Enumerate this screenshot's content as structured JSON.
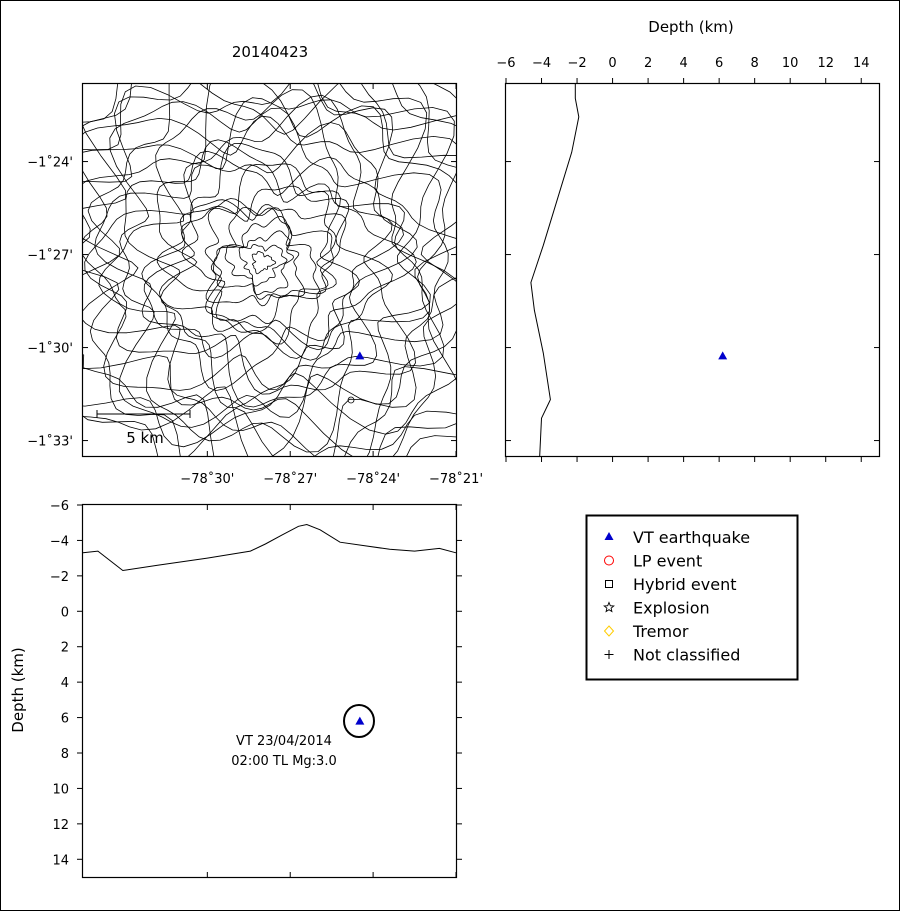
{
  "chart_data": [
    {
      "id": "map",
      "type": "scatter",
      "title": "20140423",
      "xlim": [
        -78.575,
        -78.35
      ],
      "ylim": [
        -1.5583,
        -1.3583
      ],
      "x_ticks": [
        -78.5,
        -78.45,
        -78.4,
        -78.35
      ],
      "x_tick_labels": [
        "−78˚30'",
        "−78˚27'",
        "−78˚24'",
        "−78˚21'"
      ],
      "y_ticks": [
        -1.4,
        -1.45,
        -1.5,
        -1.55
      ],
      "y_tick_labels": [
        "−1˚24'",
        "−1˚27'",
        "−1˚30'",
        "−1˚33'"
      ],
      "scale_bar_label": "5 km",
      "series": [
        {
          "name": "VT earthquake",
          "points": [
            {
              "x": -78.408,
              "y": -1.5045
            }
          ]
        }
      ]
    },
    {
      "id": "depth-lat",
      "type": "scatter",
      "xlabel": "Depth (km)",
      "xlim": [
        -6,
        15
      ],
      "ylim": [
        -1.5583,
        -1.3583
      ],
      "x_ticks": [
        -6,
        -4,
        -2,
        0,
        2,
        4,
        6,
        8,
        10,
        12,
        14
      ],
      "x_tick_labels": [
        "−6",
        "−4",
        "−2",
        "0",
        "2",
        "4",
        "6",
        "8",
        "10",
        "12",
        "14"
      ],
      "topography": [
        [
          -2.1,
          -1.3583
        ],
        [
          -2.1,
          -1.366
        ],
        [
          -1.9,
          -1.376
        ],
        [
          -2.3,
          -1.395
        ],
        [
          -3.1,
          -1.42
        ],
        [
          -3.9,
          -1.445
        ],
        [
          -4.6,
          -1.465
        ],
        [
          -4.4,
          -1.48
        ],
        [
          -3.9,
          -1.503
        ],
        [
          -3.5,
          -1.528
        ],
        [
          -3.6,
          -1.53
        ],
        [
          -4.0,
          -1.538
        ],
        [
          -4.1,
          -1.5583
        ]
      ],
      "series": [
        {
          "name": "VT earthquake",
          "points": [
            {
              "x": 6.2,
              "y": -1.5045
            }
          ]
        }
      ]
    },
    {
      "id": "lon-depth",
      "type": "scatter",
      "ylabel": "Depth (km)",
      "xlim": [
        -78.575,
        -78.35
      ],
      "ylim": [
        -6,
        15
      ],
      "y_ticks": [
        -6,
        -4,
        -2,
        0,
        2,
        4,
        6,
        8,
        10,
        12,
        14
      ],
      "y_tick_labels": [
        "−6",
        "−4",
        "−2",
        "0",
        "2",
        "4",
        "6",
        "8",
        "10",
        "12",
        "14"
      ],
      "topography": [
        [
          -78.575,
          -3.3
        ],
        [
          -78.566,
          -3.4
        ],
        [
          -78.551,
          -2.3
        ],
        [
          -78.53,
          -2.6
        ],
        [
          -78.5,
          -3.0
        ],
        [
          -78.474,
          -3.4
        ],
        [
          -78.465,
          -3.8
        ],
        [
          -78.455,
          -4.3
        ],
        [
          -78.445,
          -4.8
        ],
        [
          -78.44,
          -4.9
        ],
        [
          -78.432,
          -4.6
        ],
        [
          -78.42,
          -3.9
        ],
        [
          -78.405,
          -3.7
        ],
        [
          -78.39,
          -3.5
        ],
        [
          -78.375,
          -3.4
        ],
        [
          -78.36,
          -3.55
        ],
        [
          -78.35,
          -3.3
        ]
      ],
      "series": [
        {
          "name": "VT earthquake",
          "points": [
            {
              "x": -78.408,
              "y": 6.2
            }
          ]
        }
      ],
      "annotation": {
        "line1": "VT 23/04/2014",
        "line2": "02:00 TL Mg:3.0"
      }
    }
  ],
  "legend": {
    "items": [
      {
        "label": "VT earthquake",
        "icon": "triangle",
        "color": "#0000cc"
      },
      {
        "label": "LP event",
        "icon": "circle",
        "color": "#ff0000"
      },
      {
        "label": "Hybrid event",
        "icon": "square",
        "color": "#000000"
      },
      {
        "label": "Explosion",
        "icon": "star",
        "color": "#000000"
      },
      {
        "label": "Tremor",
        "icon": "diamond",
        "color": "#ffcc00"
      },
      {
        "label": "Not classified",
        "icon": "plus",
        "color": "#000000"
      }
    ]
  }
}
